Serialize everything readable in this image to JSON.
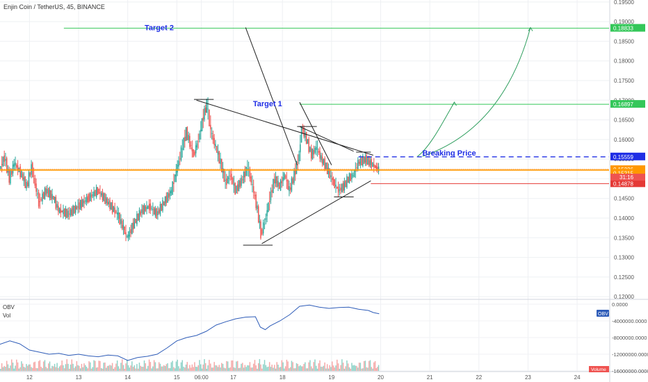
{
  "chart_data": {
    "type": "candlestick",
    "symbol": "Enjin Coin / TetherUS, 45, BINANCE",
    "ylim": [
      0.1195,
      0.1955
    ],
    "y_ticks": [
      "0.19500",
      "0.19000",
      "0.18500",
      "0.18000",
      "0.17500",
      "0.17000",
      "0.16500",
      "0.16000",
      "0.15500",
      "0.15000",
      "0.14500",
      "0.14000",
      "0.13500",
      "0.13000",
      "0.12500",
      "0.12000"
    ],
    "x_ticks": [
      {
        "label": "12",
        "t": 0.6
      },
      {
        "label": "13",
        "t": 1.6
      },
      {
        "label": "14",
        "t": 2.6
      },
      {
        "label": "15",
        "t": 3.6
      },
      {
        "label": "06:00",
        "t": 4.1
      },
      {
        "label": "17",
        "t": 4.75
      },
      {
        "label": "18",
        "t": 5.75
      },
      {
        "label": "19",
        "t": 6.75
      },
      {
        "label": "20",
        "t": 7.75
      },
      {
        "label": "21",
        "t": 8.75
      },
      {
        "label": "22",
        "t": 9.75
      },
      {
        "label": "23",
        "t": 10.75
      },
      {
        "label": "24",
        "t": 11.75
      }
    ],
    "t_range": [
      0,
      12.4
    ],
    "price_path": [
      [
        0.0,
        0.1525
      ],
      [
        0.1,
        0.1555
      ],
      [
        0.2,
        0.15
      ],
      [
        0.3,
        0.154
      ],
      [
        0.45,
        0.151
      ],
      [
        0.55,
        0.148
      ],
      [
        0.65,
        0.153
      ],
      [
        0.8,
        0.144
      ],
      [
        0.95,
        0.147
      ],
      [
        1.1,
        0.145
      ],
      [
        1.2,
        0.142
      ],
      [
        1.4,
        0.141
      ],
      [
        1.6,
        0.143
      ],
      [
        1.8,
        0.145
      ],
      [
        2.0,
        0.147
      ],
      [
        2.2,
        0.144
      ],
      [
        2.4,
        0.141
      ],
      [
        2.5,
        0.138
      ],
      [
        2.6,
        0.135
      ],
      [
        2.75,
        0.139
      ],
      [
        2.9,
        0.142
      ],
      [
        3.05,
        0.143
      ],
      [
        3.2,
        0.141
      ],
      [
        3.35,
        0.144
      ],
      [
        3.5,
        0.147
      ],
      [
        3.6,
        0.152
      ],
      [
        3.7,
        0.157
      ],
      [
        3.8,
        0.162
      ],
      [
        3.95,
        0.156
      ],
      [
        4.05,
        0.16
      ],
      [
        4.15,
        0.166
      ],
      [
        4.22,
        0.169
      ],
      [
        4.3,
        0.162
      ],
      [
        4.4,
        0.158
      ],
      [
        4.5,
        0.154
      ],
      [
        4.6,
        0.149
      ],
      [
        4.7,
        0.151
      ],
      [
        4.8,
        0.147
      ],
      [
        4.95,
        0.15
      ],
      [
        5.05,
        0.153
      ],
      [
        5.15,
        0.148
      ],
      [
        5.25,
        0.142
      ],
      [
        5.32,
        0.136
      ],
      [
        5.4,
        0.139
      ],
      [
        5.5,
        0.145
      ],
      [
        5.6,
        0.15
      ],
      [
        5.7,
        0.148
      ],
      [
        5.8,
        0.151
      ],
      [
        5.9,
        0.147
      ],
      [
        6.0,
        0.151
      ],
      [
        6.1,
        0.156
      ],
      [
        6.15,
        0.163
      ],
      [
        6.25,
        0.16
      ],
      [
        6.35,
        0.156
      ],
      [
        6.45,
        0.158
      ],
      [
        6.55,
        0.155
      ],
      [
        6.65,
        0.153
      ],
      [
        6.8,
        0.149
      ],
      [
        6.9,
        0.147
      ],
      [
        7.0,
        0.148
      ],
      [
        7.1,
        0.15
      ],
      [
        7.2,
        0.151
      ],
      [
        7.3,
        0.154
      ],
      [
        7.45,
        0.155
      ],
      [
        7.55,
        0.154
      ],
      [
        7.65,
        0.153
      ],
      [
        7.72,
        0.1524
      ]
    ],
    "obv_ylim": [
      -16000000,
      0
    ],
    "obv_ticks": [
      "0.0000",
      "-4000000.0000",
      "-8000000.0000",
      "-12000000.0000",
      "-16000000.0000"
    ],
    "obv_path": [
      [
        0.0,
        -9600000
      ],
      [
        0.2,
        -8800000
      ],
      [
        0.4,
        -9500000
      ],
      [
        0.6,
        -11000000
      ],
      [
        0.8,
        -11500000
      ],
      [
        1.0,
        -12000000
      ],
      [
        1.2,
        -11800000
      ],
      [
        1.4,
        -12300000
      ],
      [
        1.6,
        -12000000
      ],
      [
        1.8,
        -12400000
      ],
      [
        2.0,
        -12600000
      ],
      [
        2.2,
        -12200000
      ],
      [
        2.4,
        -12400000
      ],
      [
        2.6,
        -13500000
      ],
      [
        2.8,
        -12800000
      ],
      [
        3.0,
        -12500000
      ],
      [
        3.2,
        -12000000
      ],
      [
        3.4,
        -10500000
      ],
      [
        3.6,
        -8800000
      ],
      [
        3.8,
        -8000000
      ],
      [
        4.0,
        -7500000
      ],
      [
        4.2,
        -6500000
      ],
      [
        4.4,
        -5000000
      ],
      [
        4.6,
        -4200000
      ],
      [
        4.8,
        -3500000
      ],
      [
        5.0,
        -3100000
      ],
      [
        5.2,
        -3000000
      ],
      [
        5.3,
        -5500000
      ],
      [
        5.4,
        -6100000
      ],
      [
        5.5,
        -5200000
      ],
      [
        5.7,
        -4000000
      ],
      [
        5.9,
        -2500000
      ],
      [
        6.1,
        -500000
      ],
      [
        6.3,
        -200000
      ],
      [
        6.5,
        -700000
      ],
      [
        6.7,
        -1000000
      ],
      [
        6.9,
        -800000
      ],
      [
        7.1,
        -700000
      ],
      [
        7.3,
        -1200000
      ],
      [
        7.5,
        -1500000
      ],
      [
        7.6,
        -2000000
      ],
      [
        7.72,
        -2300000
      ]
    ],
    "levels": [
      {
        "price": 0.18833,
        "label": "0.18833",
        "color": "#34c759"
      },
      {
        "price": 0.16897,
        "label": "0.16897",
        "color": "#34c759"
      },
      {
        "price": 0.15559,
        "label": "0.15559",
        "color": "#1f2ee5",
        "dashed": true
      },
      {
        "price": 0.15236,
        "label": "0.15236",
        "color": "#ff9800"
      },
      {
        "price": 0.15215,
        "label": "0.15215",
        "color": "#ff9800"
      },
      {
        "price": 0.14878,
        "label": "0.14878",
        "color": "#e53935"
      }
    ],
    "countdown_label": "31:16",
    "obv_badge": "OBV",
    "vol_badge": "Volume",
    "annotations": [
      {
        "text": "Target 2",
        "price": 0.18833,
        "t": 0.0
      },
      {
        "text": "Target 1",
        "price": 0.16897,
        "t": 5.15
      },
      {
        "text": "Breaking Price",
        "price": 0.15559,
        "t": 8.6
      }
    ],
    "drawings": {
      "resistance": [
        [
          4.0,
          0.17
        ],
        [
          7.6,
          0.156
        ]
      ],
      "support": [
        [
          5.33,
          0.1335
        ],
        [
          7.55,
          0.1495
        ]
      ],
      "target2_line": [
        [
          5.0,
          0.1885
        ],
        [
          6.05,
          0.1535
        ]
      ],
      "target1_line": [
        [
          6.1,
          0.1695
        ],
        [
          6.75,
          0.1535
        ]
      ],
      "inner_line": [
        [
          6.1,
          0.1633
        ],
        [
          7.2,
          0.157
        ]
      ],
      "hlines": [
        [
          [
            3.95,
            0.1702
          ],
          [
            4.35,
            0.1702
          ]
        ],
        [
          [
            6.05,
            0.1633
          ],
          [
            6.45,
            0.1633
          ]
        ],
        [
          [
            4.95,
            0.1331
          ],
          [
            5.55,
            0.1331
          ]
        ],
        [
          [
            6.8,
            0.1454
          ],
          [
            7.2,
            0.1454
          ]
        ],
        [
          [
            7.25,
            0.1568
          ],
          [
            7.55,
            0.1568
          ]
        ]
      ],
      "arrow1": [
        [
          8.5,
          0.1557
        ],
        [
          8.75,
          0.158
        ],
        [
          9.0,
          0.164
        ],
        [
          9.25,
          0.1695
        ]
      ],
      "arrow2": [
        [
          8.6,
          0.1557
        ],
        [
          9.6,
          0.16
        ],
        [
          10.4,
          0.17
        ],
        [
          10.8,
          0.1885
        ]
      ]
    },
    "colors": {
      "up": "#26a69a",
      "down": "#ef5350",
      "obv": "#2e5cb8",
      "accent": "#1f2ee5"
    }
  },
  "labels": {
    "title": "Enjin Coin / TetherUS, 45, BINANCE",
    "obv": "OBV",
    "vol": "Vol"
  }
}
